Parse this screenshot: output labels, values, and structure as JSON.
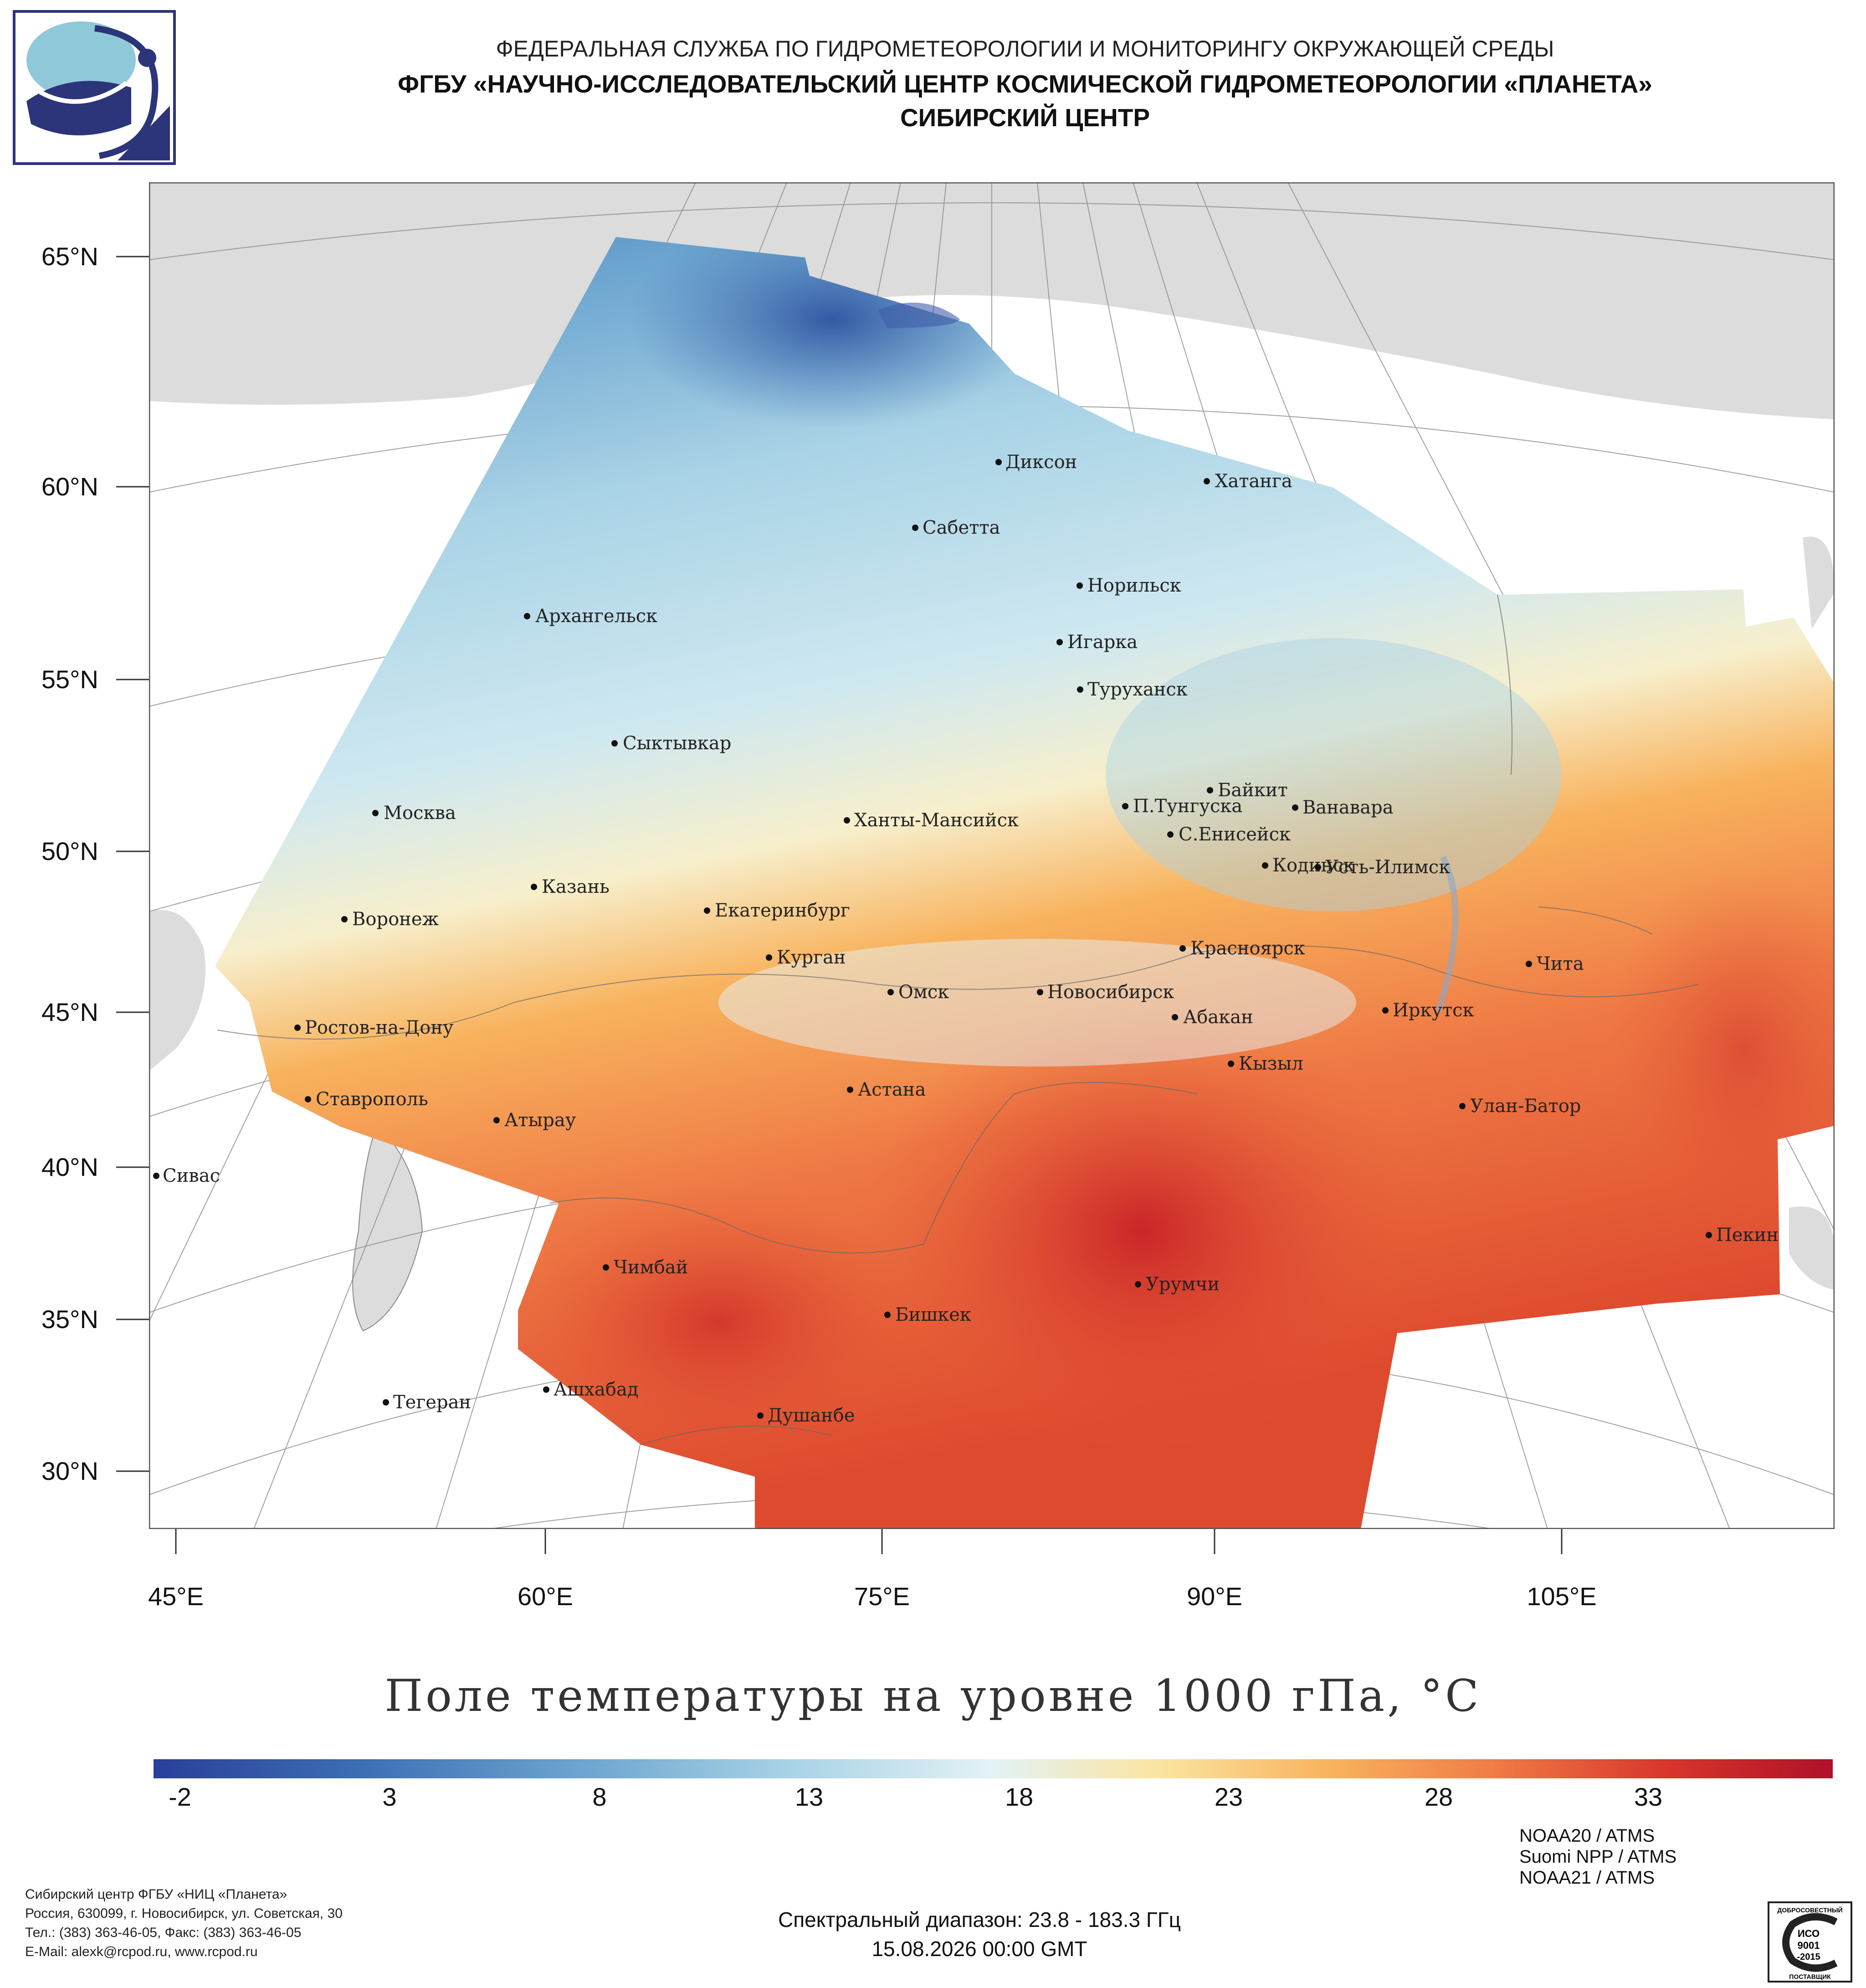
{
  "header": {
    "line1": "ФЕДЕРАЛЬНАЯ СЛУЖБА ПО ГИДРОМЕТЕОРОЛОГИИ И МОНИТОРИНГУ ОКРУЖАЮЩЕЙ СРЕДЫ",
    "line2": "ФГБУ «НАУЧНО-ИССЛЕДОВАТЕЛЬСКИЙ ЦЕНТР КОСМИЧЕСКОЙ ГИДРОМЕТЕОРОЛОГИИ «ПЛАНЕТА»",
    "line3": "СИБИРСКИЙ ЦЕНТР"
  },
  "map": {
    "title": "Поле температуры на уровне 1000 гПа, °C",
    "lat_labels": [
      "65°N",
      "60°N",
      "55°N",
      "50°N",
      "45°N",
      "40°N",
      "35°N",
      "30°N"
    ],
    "lon_labels": [
      "45°E",
      "60°E",
      "75°E",
      "90°E",
      "105°E"
    ],
    "cities": [
      {
        "name": "Диксон"
      },
      {
        "name": "Хатанга"
      },
      {
        "name": "Сабетта"
      },
      {
        "name": "Норильск"
      },
      {
        "name": "Архангельск"
      },
      {
        "name": "Игарка"
      },
      {
        "name": "Туруханск"
      },
      {
        "name": "Сыктывкар"
      },
      {
        "name": "Байкит"
      },
      {
        "name": "П.Тунгуска"
      },
      {
        "name": "Ванавара"
      },
      {
        "name": "Москва"
      },
      {
        "name": "Ханты-Мансийск"
      },
      {
        "name": "С.Енисейск"
      },
      {
        "name": "Кодинск"
      },
      {
        "name": "Усть-Илимск"
      },
      {
        "name": "Казань"
      },
      {
        "name": "Екатеринбург"
      },
      {
        "name": "Воронеж"
      },
      {
        "name": "Красноярск"
      },
      {
        "name": "Курган"
      },
      {
        "name": "Чита"
      },
      {
        "name": "Омск"
      },
      {
        "name": "Новосибирск"
      },
      {
        "name": "Ростов-на-Дону"
      },
      {
        "name": "Абакан"
      },
      {
        "name": "Иркутск"
      },
      {
        "name": "Кызыл"
      },
      {
        "name": "Астана"
      },
      {
        "name": "Ставрополь"
      },
      {
        "name": "Улан-Батор"
      },
      {
        "name": "Атырау"
      },
      {
        "name": "Сивас"
      },
      {
        "name": "Пекин"
      },
      {
        "name": "Чимбай"
      },
      {
        "name": "Урумчи"
      },
      {
        "name": "Бишкек"
      },
      {
        "name": "Ашхабад"
      },
      {
        "name": "Тегеран"
      },
      {
        "name": "Душанбе"
      }
    ]
  },
  "colorbar": {
    "ticks": [
      "-2",
      "3",
      "8",
      "13",
      "18",
      "23",
      "28",
      "33"
    ],
    "range": [
      -2,
      36
    ],
    "colors": [
      "#2a3f9a",
      "#3b6db3",
      "#6aa3cf",
      "#a9d3e6",
      "#e3f2f5",
      "#fbe4a0",
      "#f8b35e",
      "#f07a45",
      "#d8362b",
      "#b0102a"
    ]
  },
  "footer": {
    "org": "Сибирский центр ФГБУ «НИЦ «Планета»",
    "address": "Россия, 630099, г. Новосибирск, ул. Советская, 30",
    "phones": "Тел.: (383) 363-46-05, Факс: (383) 363-46-05",
    "email": "E-Mail: alexk@rcpod.ru, www.rcpod.ru",
    "spectral": "Спектральный диапазон: 23.8 - 183.3 ГГц",
    "datetime": "15.08.2026 00:00 GMT",
    "instruments": [
      "NOAA20 / ATMS",
      "Suomi NPP / ATMS",
      "NOAA21 / ATMS"
    ],
    "iso_top": "ДОБРОСОВЕСТНЫЙ",
    "iso_1": "ИСО",
    "iso_2": "9001",
    "iso_3": "-2015",
    "iso_bottom": "ПОСТАВЩИК"
  }
}
